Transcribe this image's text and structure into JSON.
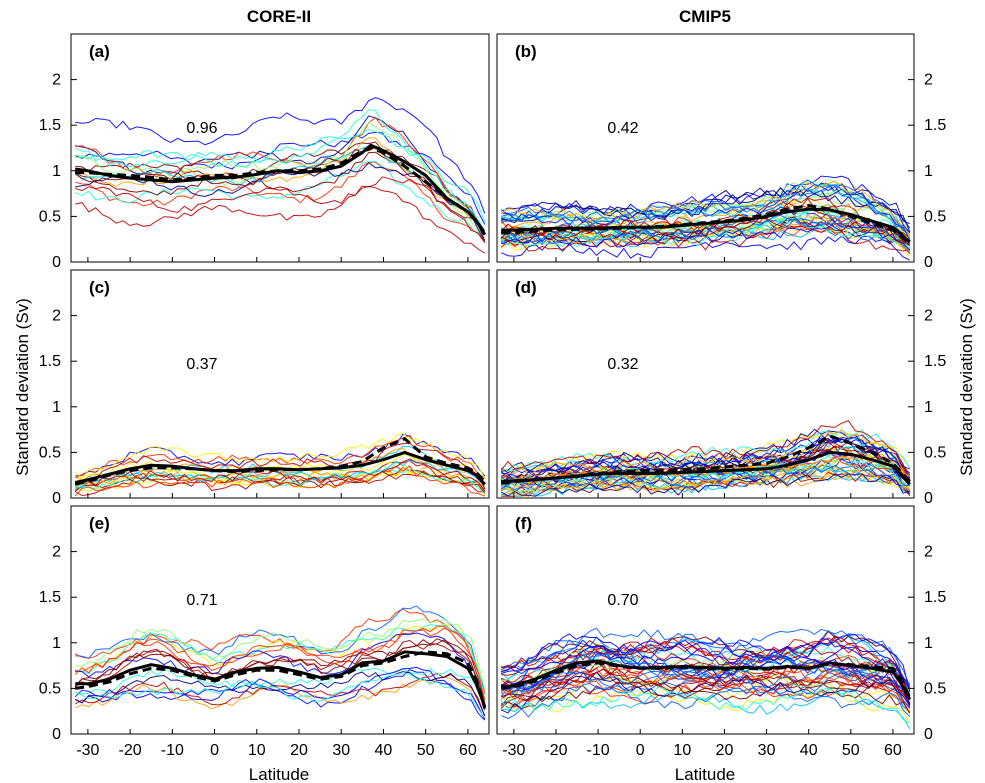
{
  "figure": {
    "column_titles": [
      "CORE-II",
      "CMIP5"
    ],
    "ylabel": "Standard deviation (Sv)",
    "xlabel": "Latitude",
    "x_ticks": [
      -30,
      -20,
      -10,
      0,
      10,
      20,
      30,
      40,
      50,
      60
    ],
    "y_ticks": [
      0,
      0.5,
      1,
      1.5,
      2
    ],
    "colors": {
      "ensemble_mean": "#000000",
      "ensemble_palette": [
        "#00008f",
        "#0000ff",
        "#0060ff",
        "#00bfff",
        "#20ffdf",
        "#8fff70",
        "#ffef00",
        "#ff9f00",
        "#ff3000",
        "#bf0000",
        "#800000"
      ]
    }
  },
  "chart_data": [
    {
      "panel": "(a)",
      "type": "line",
      "column": "CORE-II",
      "correlation": "0.96",
      "xlim": [
        -34,
        65
      ],
      "ylim": [
        0,
        2.5
      ],
      "grid": false,
      "x": [
        -33,
        -30,
        -25,
        -20,
        -15,
        -10,
        -5,
        0,
        5,
        10,
        15,
        20,
        25,
        30,
        35,
        37,
        40,
        45,
        50,
        55,
        60,
        62,
        64
      ],
      "series": [
        {
          "style": "solid",
          "values": [
            1.02,
            1.0,
            0.95,
            0.92,
            0.9,
            0.88,
            0.9,
            0.92,
            0.93,
            0.96,
            1.0,
            0.98,
            1.0,
            1.05,
            1.2,
            1.28,
            1.22,
            1.1,
            0.95,
            0.7,
            0.55,
            0.45,
            0.3
          ]
        },
        {
          "style": "dashed",
          "values": [
            0.98,
            0.98,
            0.96,
            0.95,
            0.93,
            0.9,
            0.92,
            0.95,
            0.95,
            0.98,
            1.0,
            1.0,
            1.02,
            1.08,
            1.22,
            1.25,
            1.2,
            1.05,
            0.88,
            0.7,
            0.55,
            0.45,
            0.32
          ]
        }
      ]
    },
    {
      "panel": "(b)",
      "type": "line",
      "column": "CMIP5",
      "correlation": "0.42",
      "xlim": [
        -34,
        65
      ],
      "ylim": [
        0,
        2.5
      ],
      "grid": false,
      "x": [
        -33,
        -30,
        -25,
        -20,
        -15,
        -10,
        -5,
        0,
        5,
        10,
        15,
        20,
        25,
        30,
        35,
        40,
        45,
        50,
        55,
        60,
        62,
        64
      ],
      "series": [
        {
          "style": "solid",
          "values": [
            0.35,
            0.35,
            0.36,
            0.37,
            0.37,
            0.37,
            0.38,
            0.38,
            0.38,
            0.4,
            0.42,
            0.44,
            0.46,
            0.5,
            0.55,
            0.58,
            0.57,
            0.52,
            0.45,
            0.38,
            0.3,
            0.22
          ]
        },
        {
          "style": "dashed",
          "values": [
            0.32,
            0.32,
            0.34,
            0.35,
            0.36,
            0.36,
            0.37,
            0.38,
            0.39,
            0.41,
            0.43,
            0.45,
            0.48,
            0.52,
            0.58,
            0.62,
            0.58,
            0.5,
            0.42,
            0.35,
            0.28,
            0.2
          ]
        }
      ]
    },
    {
      "panel": "(c)",
      "type": "line",
      "column": "CORE-II",
      "correlation": "0.37",
      "xlim": [
        -34,
        65
      ],
      "ylim": [
        0,
        2.5
      ],
      "grid": false,
      "x": [
        -33,
        -30,
        -25,
        -20,
        -15,
        -10,
        -5,
        0,
        5,
        10,
        15,
        20,
        25,
        30,
        35,
        40,
        45,
        50,
        55,
        60,
        62,
        64
      ],
      "series": [
        {
          "style": "solid",
          "values": [
            0.17,
            0.2,
            0.26,
            0.32,
            0.36,
            0.35,
            0.32,
            0.3,
            0.3,
            0.32,
            0.32,
            0.31,
            0.32,
            0.33,
            0.36,
            0.42,
            0.5,
            0.42,
            0.36,
            0.3,
            0.25,
            0.15
          ]
        },
        {
          "style": "dashed",
          "values": [
            0.15,
            0.18,
            0.25,
            0.3,
            0.33,
            0.33,
            0.32,
            0.3,
            0.29,
            0.3,
            0.31,
            0.31,
            0.32,
            0.35,
            0.4,
            0.55,
            0.65,
            0.45,
            0.38,
            0.33,
            0.28,
            0.18
          ]
        }
      ]
    },
    {
      "panel": "(d)",
      "type": "line",
      "column": "CMIP5",
      "correlation": "0.32",
      "xlim": [
        -34,
        65
      ],
      "ylim": [
        0,
        2.5
      ],
      "grid": false,
      "x": [
        -33,
        -30,
        -25,
        -20,
        -15,
        -10,
        -5,
        0,
        5,
        10,
        15,
        20,
        25,
        30,
        35,
        40,
        45,
        50,
        55,
        60,
        62,
        64
      ],
      "series": [
        {
          "style": "solid",
          "values": [
            0.18,
            0.19,
            0.2,
            0.22,
            0.24,
            0.26,
            0.27,
            0.27,
            0.27,
            0.28,
            0.29,
            0.3,
            0.31,
            0.32,
            0.36,
            0.42,
            0.5,
            0.48,
            0.42,
            0.35,
            0.25,
            0.15
          ]
        },
        {
          "style": "dashed",
          "values": [
            0.16,
            0.18,
            0.2,
            0.22,
            0.24,
            0.27,
            0.29,
            0.3,
            0.3,
            0.31,
            0.32,
            0.34,
            0.36,
            0.38,
            0.45,
            0.55,
            0.68,
            0.6,
            0.5,
            0.38,
            0.28,
            0.18
          ]
        }
      ]
    },
    {
      "panel": "(e)",
      "type": "line",
      "column": "CORE-II",
      "correlation": "0.71",
      "xlim": [
        -34,
        65
      ],
      "ylim": [
        0,
        2.5
      ],
      "grid": false,
      "x": [
        -33,
        -30,
        -25,
        -20,
        -15,
        -10,
        -5,
        0,
        5,
        10,
        15,
        20,
        25,
        30,
        35,
        40,
        45,
        50,
        55,
        60,
        62,
        64
      ],
      "series": [
        {
          "style": "solid",
          "values": [
            0.55,
            0.55,
            0.6,
            0.7,
            0.76,
            0.72,
            0.65,
            0.6,
            0.68,
            0.72,
            0.73,
            0.68,
            0.62,
            0.65,
            0.78,
            0.8,
            0.9,
            0.88,
            0.85,
            0.72,
            0.55,
            0.3
          ]
        },
        {
          "style": "dashed",
          "values": [
            0.5,
            0.52,
            0.57,
            0.66,
            0.72,
            0.7,
            0.63,
            0.58,
            0.65,
            0.7,
            0.7,
            0.65,
            0.6,
            0.63,
            0.75,
            0.78,
            0.85,
            0.9,
            0.88,
            0.78,
            0.6,
            0.28
          ]
        }
      ]
    },
    {
      "panel": "(f)",
      "type": "line",
      "column": "CMIP5",
      "correlation": "0.70",
      "xlim": [
        -34,
        65
      ],
      "ylim": [
        0,
        2.5
      ],
      "grid": false,
      "x": [
        -33,
        -30,
        -25,
        -20,
        -15,
        -10,
        -5,
        0,
        5,
        10,
        15,
        20,
        25,
        30,
        35,
        40,
        45,
        50,
        55,
        60,
        62,
        64
      ],
      "series": [
        {
          "style": "solid",
          "values": [
            0.52,
            0.53,
            0.6,
            0.7,
            0.78,
            0.8,
            0.75,
            0.72,
            0.73,
            0.74,
            0.73,
            0.72,
            0.73,
            0.72,
            0.74,
            0.72,
            0.78,
            0.75,
            0.72,
            0.68,
            0.55,
            0.38
          ]
        },
        {
          "style": "dashed",
          "values": [
            0.5,
            0.52,
            0.58,
            0.67,
            0.75,
            0.78,
            0.74,
            0.72,
            0.72,
            0.73,
            0.72,
            0.71,
            0.72,
            0.71,
            0.73,
            0.72,
            0.77,
            0.76,
            0.74,
            0.72,
            0.6,
            0.4
          ]
        }
      ]
    }
  ]
}
